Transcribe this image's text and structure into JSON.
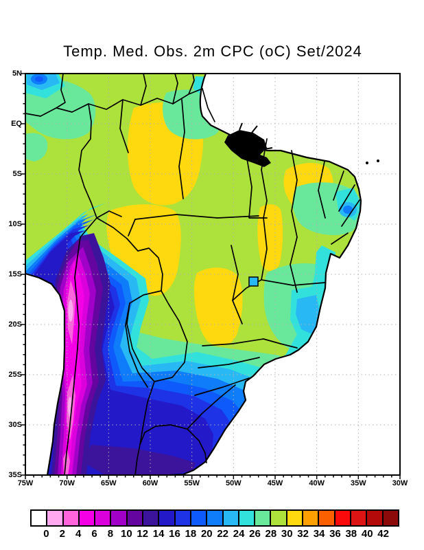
{
  "title": "Temp. Med. Obs. 2m CPC (oC) Set/2024",
  "map": {
    "lat_labels": [
      "5N",
      "EQ",
      "5S",
      "10S",
      "15S",
      "20S",
      "25S",
      "30S",
      "35S"
    ],
    "lon_labels": [
      "75W",
      "70W",
      "65W",
      "60W",
      "55W",
      "50W",
      "45W",
      "40W",
      "35W",
      "30W"
    ]
  },
  "colorbar": {
    "tick_labels": [
      "0",
      "2",
      "4",
      "6",
      "8",
      "10",
      "12",
      "14",
      "16",
      "18",
      "20",
      "22",
      "24",
      "26",
      "28",
      "30",
      "32",
      "34",
      "36",
      "38",
      "40",
      "42"
    ],
    "colors": [
      "#FFFFFF",
      "#FFA8F0",
      "#FF64DC",
      "#F500E6",
      "#D900DC",
      "#A000C8",
      "#6405A0",
      "#3C149B",
      "#2319C8",
      "#1E32E6",
      "#0F5AFA",
      "#0F7DFA",
      "#28B9F5",
      "#32E1DC",
      "#69E89B",
      "#ADE13C",
      "#FFD90F",
      "#FFA000",
      "#FA5F00",
      "#FA0A0A",
      "#DC1414",
      "#B40A0A",
      "#8C0A0A"
    ]
  },
  "chart_data": {
    "type": "heatmap",
    "title": "Temp. Med. Obs. 2m CPC (oC) Set/2024",
    "units": "oC",
    "period_label": "Set/2024",
    "x_ticks": [
      "75W",
      "70W",
      "65W",
      "60W",
      "55W",
      "50W",
      "45W",
      "40W",
      "35W",
      "30W"
    ],
    "y_ticks": [
      "5N",
      "EQ",
      "5S",
      "10S",
      "15S",
      "20S",
      "25S",
      "30S",
      "35S"
    ],
    "colorbar_levels": [
      0,
      2,
      4,
      6,
      8,
      10,
      12,
      14,
      16,
      18,
      20,
      22,
      24,
      26,
      28,
      30,
      32,
      34,
      36,
      38,
      40,
      42
    ],
    "colorbar_colors": [
      "#FFFFFF",
      "#FFA8F0",
      "#FF64DC",
      "#F500E6",
      "#D900DC",
      "#A000C8",
      "#6405A0",
      "#3C149B",
      "#2319C8",
      "#1E32E6",
      "#0F5AFA",
      "#0F7DFA",
      "#28B9F5",
      "#32E1DC",
      "#69E89B",
      "#ADE13C",
      "#FFD90F",
      "#FFA000",
      "#FA5F00",
      "#FA0A0A",
      "#DC1414",
      "#B40A0A",
      "#8C0A0A"
    ],
    "grid": "dotted 5-degree lat/lon grid",
    "legend_position": "bottom",
    "regions": [
      {
        "area": "Central and northern Amazon (62-54W, 1N-8S)",
        "value_range_C": "30-32"
      },
      {
        "area": "Most of interior Brazil",
        "value_range_C": "28-30"
      },
      {
        "area": "Maranhao/Piaui interior (44-40W, 5-7S)",
        "value_range_C": "30-32"
      },
      {
        "area": "Rondonia / Mato Grosso (62-56W, 8-15S)",
        "value_range_C": "30-32"
      },
      {
        "area": "Northwest corner highlands (74W, 4N)",
        "value_range_C": "18-24"
      },
      {
        "area": "East coast strip Bahia-Espirito Santo",
        "value_range_C": "22-26"
      },
      {
        "area": "Recife coastal spot (35W, 8S)",
        "value_range_C": "20-22"
      },
      {
        "area": "Minas Gerais / Goias highlands",
        "value_range_C": "24-28"
      },
      {
        "area": "South Brazil (24-30S)",
        "value_range_C": "16-24"
      },
      {
        "area": "Uruguay and far south (31-35S)",
        "value_range_C": "12-16"
      },
      {
        "area": "Andes foothill gradient band (12-35S)",
        "value_range_C": "6-16"
      },
      {
        "area": "Andes cordillera core (70W, 14-35S)",
        "value_range_C": "0-6"
      },
      {
        "area": "Ocean",
        "value_range_C": "masked (white)"
      }
    ]
  }
}
